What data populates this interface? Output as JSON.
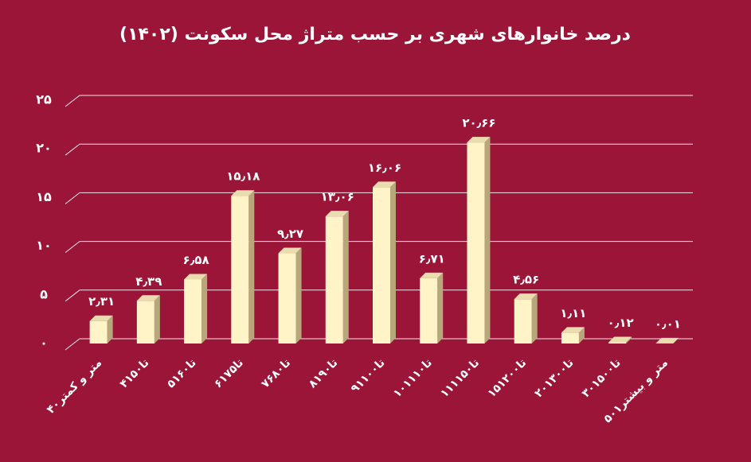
{
  "chart_data": {
    "type": "bar",
    "title": "درصد خانوارهای شهری بر حسب متراژ محل سکونت (۱۴۰۲)",
    "categories": [
      "۴۰متر و کمتر",
      "۴۱تا۵۰",
      "۵۱تا۶۰",
      "۶۱تا۷۵",
      "۷۶تا۸۰",
      "۸۱تا۹۰",
      "۹۱تا۱۰۰",
      "۱۰۱تا۱۱۰",
      "۱۱۱تا۱۵۰",
      "۱۵۱تا۲۰۰",
      "۲۰۱تا۳۰۰",
      "۳۰۱تا۵۰۰",
      "۵۰۱متر و بیشتر"
    ],
    "values": [
      2.31,
      4.39,
      6.58,
      15.18,
      9.27,
      13.06,
      16.06,
      6.71,
      20.66,
      4.56,
      1.11,
      0.12,
      0.01
    ],
    "value_labels": [
      "۲٫۳۱",
      "۴٫۳۹",
      "۶٫۵۸",
      "۱۵٫۱۸",
      "۹٫۲۷",
      "۱۳٫۰۶",
      "۱۶٫۰۶",
      "۶٫۷۱",
      "۲۰٫۶۶",
      "۴٫۵۶",
      "۱٫۱۱",
      "۰٫۱۲",
      "۰٫۰۱"
    ],
    "color": "#fff4c8",
    "ylim": [
      0,
      25
    ],
    "yticks": [
      {
        "value": 0,
        "label": "۰"
      },
      {
        "value": 5,
        "label": "۵"
      },
      {
        "value": 10,
        "label": "۱۰"
      },
      {
        "value": 15,
        "label": "۱۵"
      },
      {
        "value": 20,
        "label": "۲۰"
      },
      {
        "value": 25,
        "label": "۲۵"
      }
    ],
    "grid": true
  }
}
